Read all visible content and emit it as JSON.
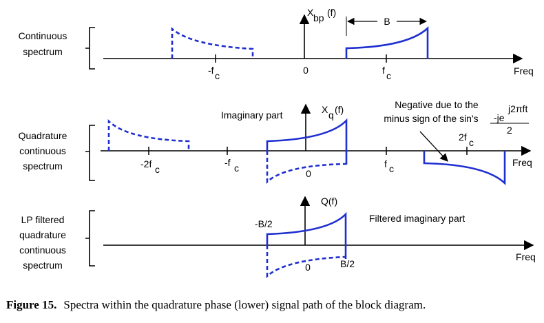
{
  "row_labels": {
    "row1": [
      "Continuous",
      "spectrum"
    ],
    "row2": [
      "Quadrature",
      "continuous",
      "spectrum"
    ],
    "row3": [
      "LP filtered",
      "quadrature",
      "continuous",
      "spectrum"
    ]
  },
  "row1": {
    "ylabel_main": "X",
    "ylabel_sub": "bp",
    "ylabel_arg": "(f)",
    "bandwidth_label": "B",
    "tick_neg_fc_main": "-f",
    "tick_neg_fc_sub": "c",
    "tick_zero": "0",
    "tick_fc_main": "f",
    "tick_fc_sub": "c",
    "xlabel": "Freq"
  },
  "row2": {
    "annotation_imag": "Imaginary part",
    "ylabel_main": "X",
    "ylabel_sub": "q",
    "ylabel_arg": "(f)",
    "note_line1": "Negative due to the",
    "note_line2": "minus sign of the sin's",
    "frac_num_main": "-je",
    "frac_num_sup": "j2πft",
    "frac_den": "2",
    "tick_neg2fc_main": "-2f",
    "tick_neg2fc_sub": "c",
    "tick_negfc_main": "-f",
    "tick_negfc_sub": "c",
    "tick_zero": "0",
    "tick_fc_main": "f",
    "tick_fc_sub": "c",
    "tick_2fc_main": "2f",
    "tick_2fc_sub": "c",
    "xlabel": "Freq"
  },
  "row3": {
    "ylabel": "Q(f)",
    "label_negB2": "-B/2",
    "label_filtered": "Filtered imaginary part",
    "tick_zero": "0",
    "label_B2": "B/2",
    "xlabel": "Freq"
  },
  "caption": {
    "bold": "Figure 15.",
    "text": "Spectra within the quadrature phase (lower) signal path of the block diagram."
  },
  "colors": {
    "spectrum": "#1f2fd0",
    "axis": "#000000"
  }
}
